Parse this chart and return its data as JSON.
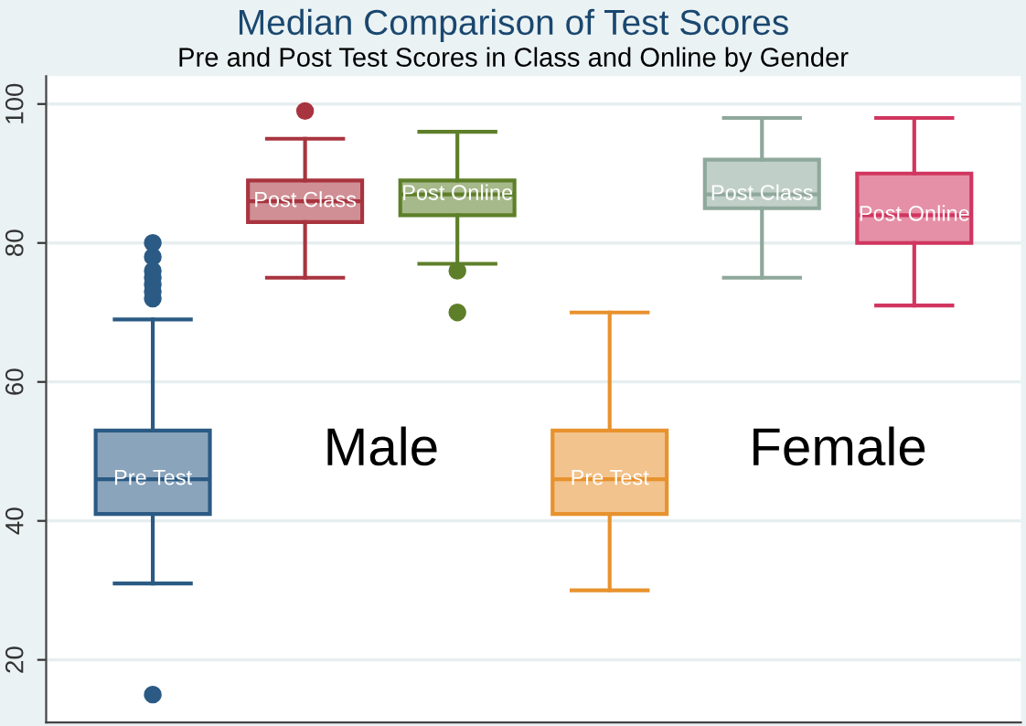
{
  "chart_data": {
    "type": "box",
    "title": "Median Comparison of Test Scores",
    "subtitle": "Pre and Post Test Scores in Class and Online by Gender",
    "categories": [
      null,
      null,
      null,
      null,
      null,
      null
    ],
    "series": [
      {
        "name": "Pre Test",
        "color": "#2b5a84",
        "boxes": [
          {
            "low": 31,
            "q1": 41,
            "median": 46,
            "q3": 53,
            "high": 69,
            "outliers": [
              80,
              78,
              76,
              75,
              74,
              73,
              72,
              15
            ]
          },
          null,
          null,
          null,
          null,
          null
        ]
      },
      {
        "name": "Post Class",
        "color": "#a8343f",
        "boxes": [
          null,
          {
            "low": 75,
            "q1": 83,
            "median": 86,
            "q3": 89,
            "high": 95,
            "outliers": [
              99
            ]
          },
          null,
          null,
          null,
          null
        ]
      },
      {
        "name": "Post Online",
        "color": "#5e7f2a",
        "boxes": [
          null,
          null,
          {
            "low": 77,
            "q1": 84,
            "median": 87,
            "q3": 89,
            "high": 96,
            "outliers": [
              76,
              70
            ]
          },
          null,
          null,
          null
        ]
      },
      {
        "name": "Pre Test",
        "color": "#e8922e",
        "boxes": [
          null,
          null,
          null,
          {
            "low": 30,
            "q1": 41,
            "median": 46,
            "q3": 53,
            "high": 70
          },
          null,
          null
        ]
      },
      {
        "name": "Post Class",
        "color": "#8fa89c",
        "boxes": [
          null,
          null,
          null,
          null,
          {
            "low": 75,
            "q1": 85,
            "median": 87,
            "q3": 92,
            "high": 98
          },
          null
        ]
      },
      {
        "name": "Post Online",
        "color": "#d0365f",
        "boxes": [
          null,
          null,
          null,
          null,
          null,
          {
            "low": 71,
            "q1": 80,
            "median": 84,
            "q3": 90,
            "high": 98
          }
        ]
      }
    ],
    "annotations": [
      "Male",
      "Female"
    ],
    "ylim": [
      11,
      104
    ],
    "yticks": [
      20,
      40,
      60,
      80,
      100
    ],
    "grid": "y",
    "tick_labels": "y"
  }
}
